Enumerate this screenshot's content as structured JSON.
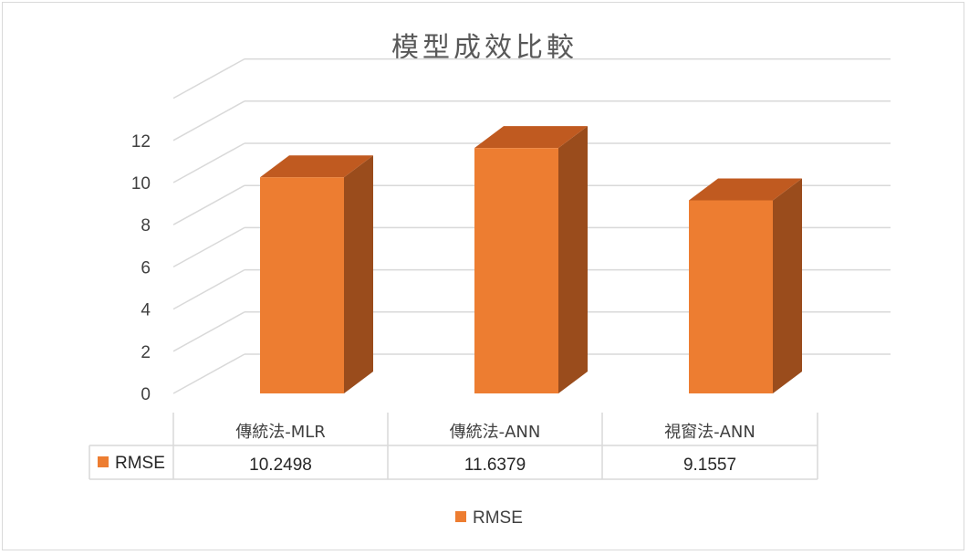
{
  "chart_data": {
    "type": "bar",
    "title": "模型成效比較",
    "categories": [
      "傳統法-MLR",
      "傳統法-ANN",
      "視窗法-ANN"
    ],
    "series": [
      {
        "name": "RMSE",
        "values": [
          10.2498,
          11.6379,
          9.1557
        ],
        "labels": [
          "10.2498",
          "11.6379",
          "9.1557"
        ]
      }
    ],
    "y_ticks": [
      "0",
      "2",
      "4",
      "6",
      "8",
      "10",
      "12"
    ],
    "ylim": [
      0,
      14
    ],
    "grid": true,
    "legend_position": "bottom",
    "data_table": true,
    "colors": {
      "bar_front": "#ed7d31",
      "bar_side": "#9a4c1c",
      "bar_top": "#c05a20",
      "grid": "#d9d9d9",
      "axis_text": "#404040"
    }
  }
}
